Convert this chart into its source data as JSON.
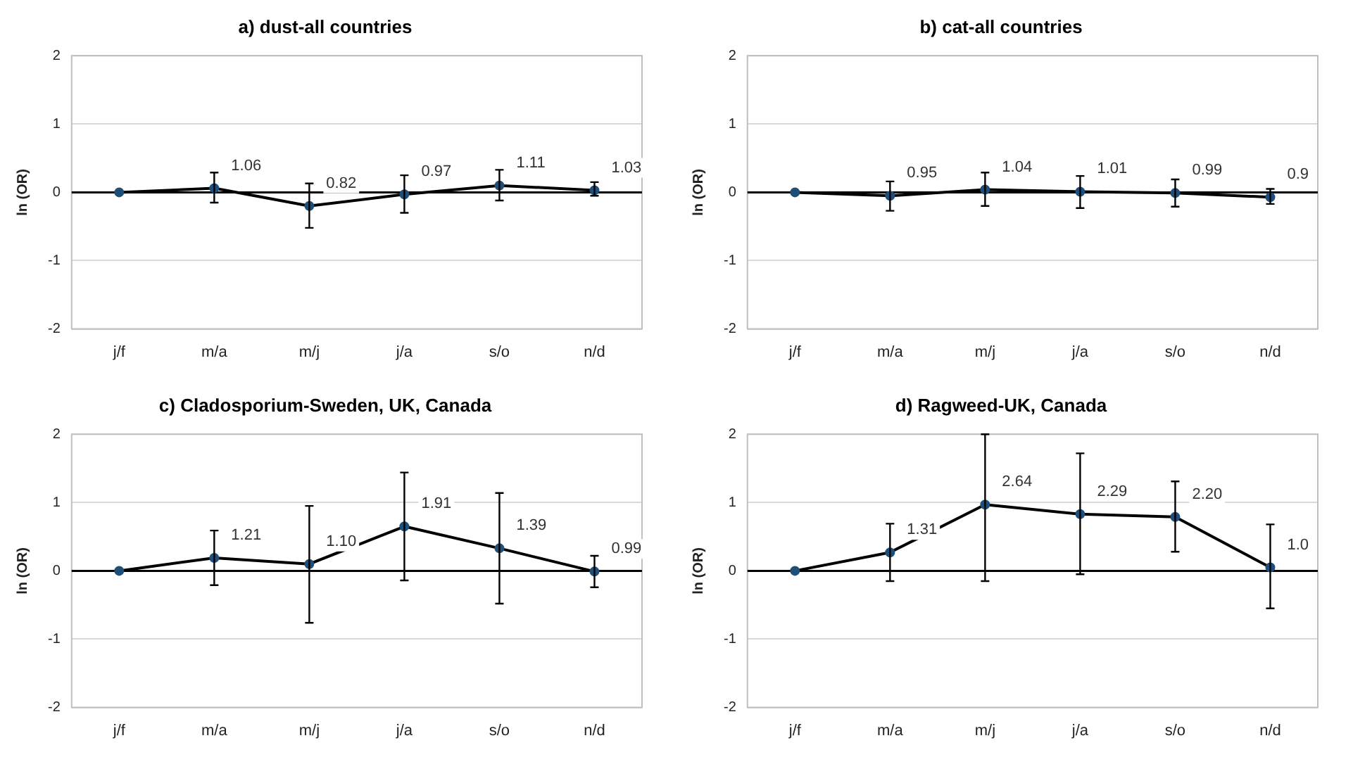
{
  "chart_data": [
    {
      "type": "line",
      "title": "a) dust-all countries",
      "ylabel": "ln (OR)",
      "categories": [
        "j/f",
        "m/a",
        "m/j",
        "j/a",
        "s/o",
        "n/d"
      ],
      "ylim": [
        -2,
        2
      ],
      "yticks": [
        -2,
        -1,
        0,
        1,
        2
      ],
      "grid": "y",
      "marker": "circle",
      "line_style": "solid",
      "series": [
        {
          "color": "#000000",
          "values": [
            0,
            0.06,
            -0.2,
            -0.03,
            0.1,
            0.03
          ],
          "errors": [
            null,
            [
              -0.15,
              0.29
            ],
            [
              -0.52,
              0.13
            ],
            [
              -0.3,
              0.25
            ],
            [
              -0.12,
              0.33
            ],
            [
              -0.05,
              0.15
            ]
          ]
        }
      ],
      "annotations": [
        {
          "text": "1.06",
          "x": "m/a",
          "y": 0.06
        },
        {
          "text": "0.82",
          "x": "m/j",
          "y": -0.2
        },
        {
          "text": "0.97",
          "x": "j/a",
          "y": -0.03
        },
        {
          "text": "1.11",
          "x": "s/o",
          "y": 0.1
        },
        {
          "text": "1.03",
          "x": "n/d",
          "y": 0.03
        }
      ],
      "ref_lines": [
        {
          "axis": "y",
          "value": 0,
          "color": "#000000"
        }
      ]
    },
    {
      "type": "line",
      "title": "b) cat-all countries",
      "ylabel": "ln (OR)",
      "categories": [
        "j/f",
        "m/a",
        "m/j",
        "j/a",
        "s/o",
        "n/d"
      ],
      "ylim": [
        -2,
        2
      ],
      "yticks": [
        -2,
        -1,
        0,
        1,
        2
      ],
      "grid": "y",
      "marker": "circle",
      "line_style": "solid",
      "series": [
        {
          "color": "#000000",
          "values": [
            0,
            -0.05,
            0.04,
            0.01,
            -0.01,
            -0.07
          ],
          "errors": [
            null,
            [
              -0.27,
              0.16
            ],
            [
              -0.2,
              0.29
            ],
            [
              -0.23,
              0.24
            ],
            [
              -0.21,
              0.19
            ],
            [
              -0.17,
              0.05
            ]
          ]
        }
      ],
      "annotations": [
        {
          "text": "0.95",
          "x": "m/a",
          "y": -0.05
        },
        {
          "text": "1.04",
          "x": "m/j",
          "y": 0.04
        },
        {
          "text": "1.01",
          "x": "j/a",
          "y": 0.01
        },
        {
          "text": "0.99",
          "x": "s/o",
          "y": -0.01
        },
        {
          "text": "0.9",
          "x": "n/d",
          "y": -0.07
        }
      ],
      "ref_lines": [
        {
          "axis": "y",
          "value": 0,
          "color": "#000000"
        }
      ]
    },
    {
      "type": "line",
      "title": "c) Cladosporium-Sweden, UK, Canada",
      "ylabel": "ln (OR)",
      "categories": [
        "j/f",
        "m/a",
        "m/j",
        "j/a",
        "s/o",
        "n/d"
      ],
      "ylim": [
        -2,
        2
      ],
      "yticks": [
        -2,
        -1,
        0,
        1,
        2
      ],
      "grid": "y",
      "marker": "circle",
      "line_style": "solid",
      "series": [
        {
          "color": "#000000",
          "values": [
            0,
            0.19,
            0.1,
            0.65,
            0.33,
            -0.01
          ],
          "errors": [
            null,
            [
              -0.21,
              0.59
            ],
            [
              -0.76,
              0.95
            ],
            [
              -0.14,
              1.44
            ],
            [
              -0.48,
              1.14
            ],
            [
              -0.24,
              0.22
            ]
          ]
        }
      ],
      "annotations": [
        {
          "text": "1.21",
          "x": "m/a",
          "y": 0.19
        },
        {
          "text": "1.10",
          "x": "m/j",
          "y": 0.1
        },
        {
          "text": "1.91",
          "x": "j/a",
          "y": 0.65
        },
        {
          "text": "1.39",
          "x": "s/o",
          "y": 0.33
        },
        {
          "text": "0.99",
          "x": "n/d",
          "y": -0.01
        }
      ],
      "ref_lines": [
        {
          "axis": "y",
          "value": 0,
          "color": "#000000"
        }
      ]
    },
    {
      "type": "line",
      "title": "d) Ragweed-UK, Canada",
      "ylabel": "ln (OR)",
      "categories": [
        "j/f",
        "m/a",
        "m/j",
        "j/a",
        "s/o",
        "n/d"
      ],
      "ylim": [
        -2,
        2
      ],
      "yticks": [
        -2,
        -1,
        0,
        1,
        2
      ],
      "grid": "y",
      "marker": "circle",
      "line_style": "solid",
      "series": [
        {
          "color": "#000000",
          "values": [
            0,
            0.27,
            0.97,
            0.83,
            0.79,
            0.05
          ],
          "errors": [
            null,
            [
              -0.15,
              0.69
            ],
            [
              -0.15,
              2.0
            ],
            [
              -0.05,
              1.72
            ],
            [
              0.28,
              1.31
            ],
            [
              -0.55,
              0.68
            ]
          ]
        }
      ],
      "annotations": [
        {
          "text": "1.31",
          "x": "m/a",
          "y": 0.27
        },
        {
          "text": "2.64",
          "x": "m/j",
          "y": 0.97
        },
        {
          "text": "2.29",
          "x": "j/a",
          "y": 0.83
        },
        {
          "text": "2.20",
          "x": "s/o",
          "y": 0.79
        },
        {
          "text": "1.0",
          "x": "n/d",
          "y": 0.05
        }
      ],
      "ref_lines": [
        {
          "axis": "y",
          "value": 0,
          "color": "#000000"
        }
      ]
    }
  ]
}
